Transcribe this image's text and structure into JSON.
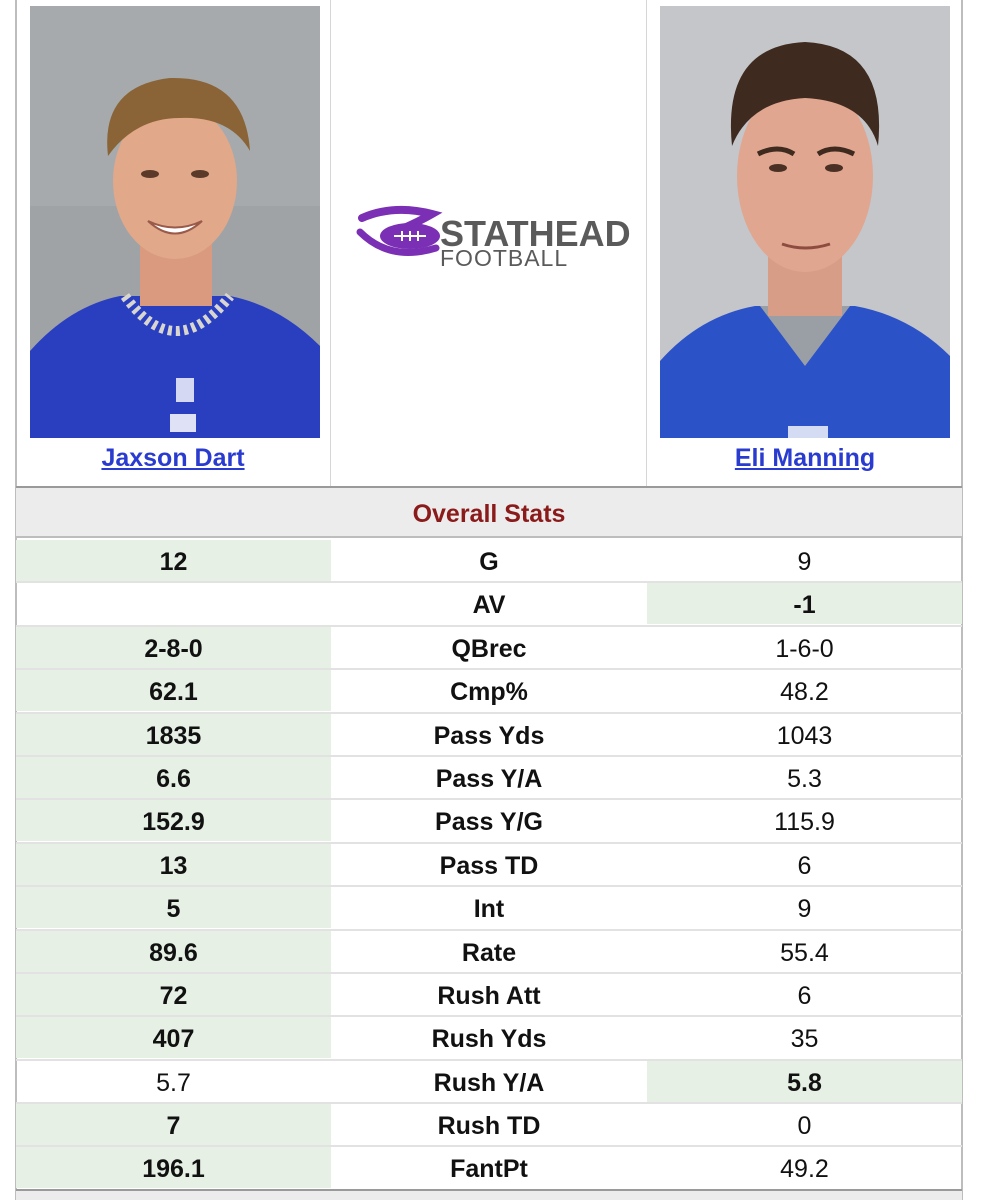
{
  "players": {
    "left": {
      "name": "Jaxson Dart",
      "photo_alt": "Jaxson Dart headshot"
    },
    "right": {
      "name": "Eli Manning",
      "photo_alt": "Eli Manning headshot"
    }
  },
  "logo": {
    "line1": "STATHEAD",
    "line2": "FOOTBALL"
  },
  "section": {
    "title": "Overall Stats"
  },
  "colors": {
    "link": "#2a3bd0",
    "section_title": "#8b1a1a",
    "winner_bg": "#e6f0e5",
    "logo_purple": "#7b2fb5",
    "logo_grey": "#5a5a5a"
  },
  "stats": [
    {
      "label": "G",
      "left": "12",
      "right": "9",
      "winner": "left"
    },
    {
      "label": "AV",
      "left": "",
      "right": "-1",
      "winner": "right"
    },
    {
      "label": "QBrec",
      "left": "2-8-0",
      "right": "1-6-0",
      "winner": "left"
    },
    {
      "label": "Cmp%",
      "left": "62.1",
      "right": "48.2",
      "winner": "left"
    },
    {
      "label": "Pass Yds",
      "left": "1835",
      "right": "1043",
      "winner": "left"
    },
    {
      "label": "Pass Y/A",
      "left": "6.6",
      "right": "5.3",
      "winner": "left"
    },
    {
      "label": "Pass Y/G",
      "left": "152.9",
      "right": "115.9",
      "winner": "left"
    },
    {
      "label": "Pass TD",
      "left": "13",
      "right": "6",
      "winner": "left"
    },
    {
      "label": "Int",
      "left": "5",
      "right": "9",
      "winner": "left"
    },
    {
      "label": "Rate",
      "left": "89.6",
      "right": "55.4",
      "winner": "left"
    },
    {
      "label": "Rush Att",
      "left": "72",
      "right": "6",
      "winner": "left"
    },
    {
      "label": "Rush Yds",
      "left": "407",
      "right": "35",
      "winner": "left"
    },
    {
      "label": "Rush Y/A",
      "left": "5.7",
      "right": "5.8",
      "winner": "right"
    },
    {
      "label": "Rush TD",
      "left": "7",
      "right": "0",
      "winner": "left"
    },
    {
      "label": "FantPt",
      "left": "196.1",
      "right": "49.2",
      "winner": "left"
    }
  ]
}
